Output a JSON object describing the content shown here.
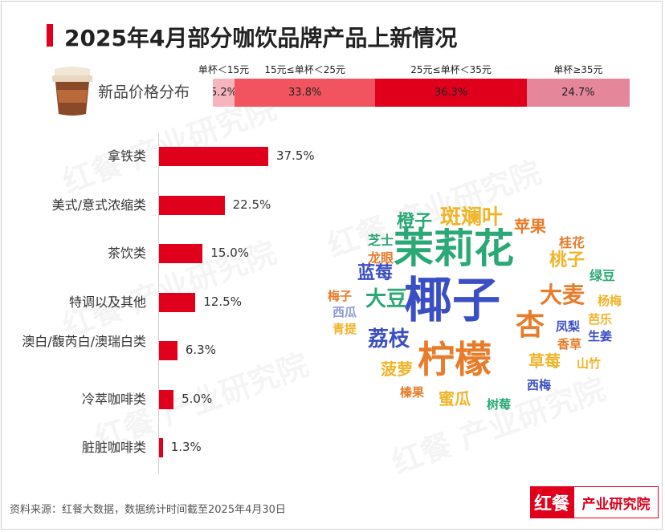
{
  "title": "2025年4月部分咖饮品牌产品上新情况",
  "price_distribution": {
    "label": "新品价格分布",
    "segments": [
      {
        "name": "单杯＜15元",
        "value": 5.2,
        "label": "5.2%",
        "color": "#f6b5bd"
      },
      {
        "name": "15元≤单杯＜25元",
        "value": 33.8,
        "label": "33.8%",
        "color": "#f1545e"
      },
      {
        "name": "25元≤单杯＜35元",
        "value": 36.3,
        "label": "36.3%",
        "color": "#e0001b"
      },
      {
        "name": "单杯≥35元",
        "value": 24.7,
        "label": "24.7%",
        "color": "#e6869a"
      }
    ]
  },
  "chart_data": {
    "type": "bar",
    "orientation": "horizontal",
    "categories": [
      "拿铁类",
      "美式/意式浓缩类",
      "茶饮类",
      "特调以及其他",
      "澳白/馥芮白/澳瑞白类",
      "冷萃咖啡类",
      "脏脏咖啡类"
    ],
    "values": [
      37.5,
      22.5,
      15.0,
      12.5,
      6.3,
      5.0,
      1.3
    ],
    "value_labels": [
      "37.5%",
      "22.5%",
      "15.0%",
      "12.5%",
      "6.3%",
      "5.0%",
      "1.3%"
    ],
    "bar_color": "#e0001b"
  },
  "word_cloud": [
    {
      "text": "椰子",
      "color": "#3b4fc4",
      "weight": 1.0
    },
    {
      "text": "茉莉花",
      "color": "#2aa876",
      "weight": 0.85
    },
    {
      "text": "柠檬",
      "color": "#e87c2a",
      "weight": 0.8
    },
    {
      "text": "斑斓叶",
      "color": "#f0b429",
      "weight": 0.5
    },
    {
      "text": "杏",
      "color": "#e87c2a",
      "weight": 0.55
    },
    {
      "text": "大豆",
      "color": "#2aa876",
      "weight": 0.45
    },
    {
      "text": "大麦",
      "color": "#e87c2a",
      "weight": 0.45
    },
    {
      "text": "荔枝",
      "color": "#3b4fc4",
      "weight": 0.42
    },
    {
      "text": "橙子",
      "color": "#2aa876",
      "weight": 0.38
    },
    {
      "text": "苹果",
      "color": "#e87c2a",
      "weight": 0.35
    },
    {
      "text": "桃子",
      "color": "#f0b429",
      "weight": 0.35
    },
    {
      "text": "蓝莓",
      "color": "#3b4fc4",
      "weight": 0.33
    },
    {
      "text": "菠萝",
      "color": "#f0b429",
      "weight": 0.32
    },
    {
      "text": "草莓",
      "color": "#f0b429",
      "weight": 0.32
    },
    {
      "text": "蜜瓜",
      "color": "#f0b429",
      "weight": 0.3
    },
    {
      "text": "芝士",
      "color": "#2aa876",
      "weight": 0.22
    },
    {
      "text": "龙眼",
      "color": "#e87c2a",
      "weight": 0.22
    },
    {
      "text": "桂花",
      "color": "#e87c2a",
      "weight": 0.22
    },
    {
      "text": "绿豆",
      "color": "#2aa876",
      "weight": 0.22
    },
    {
      "text": "梅子",
      "color": "#e87c2a",
      "weight": 0.2
    },
    {
      "text": "西瓜",
      "color": "#8b9ad8",
      "weight": 0.2
    },
    {
      "text": "青提",
      "color": "#f0b429",
      "weight": 0.2
    },
    {
      "text": "杨梅",
      "color": "#f0b429",
      "weight": 0.2
    },
    {
      "text": "凤梨",
      "color": "#3b4fc4",
      "weight": 0.2
    },
    {
      "text": "芭乐",
      "color": "#f0b429",
      "weight": 0.2
    },
    {
      "text": "香草",
      "color": "#e87c2a",
      "weight": 0.2
    },
    {
      "text": "生姜",
      "color": "#3b4fc4",
      "weight": 0.2
    },
    {
      "text": "山竹",
      "color": "#f0b429",
      "weight": 0.2
    },
    {
      "text": "西梅",
      "color": "#3b4fc4",
      "weight": 0.2
    },
    {
      "text": "榛果",
      "color": "#e87c2a",
      "weight": 0.2
    },
    {
      "text": "树莓",
      "color": "#2aa876",
      "weight": 0.2
    }
  ],
  "watermark": "红餐 产业研究院",
  "source": "资料来源：红餐大数据，数据统计时间截至2025年4月30日",
  "logo": {
    "left": "红餐",
    "right": "产业研究院"
  }
}
